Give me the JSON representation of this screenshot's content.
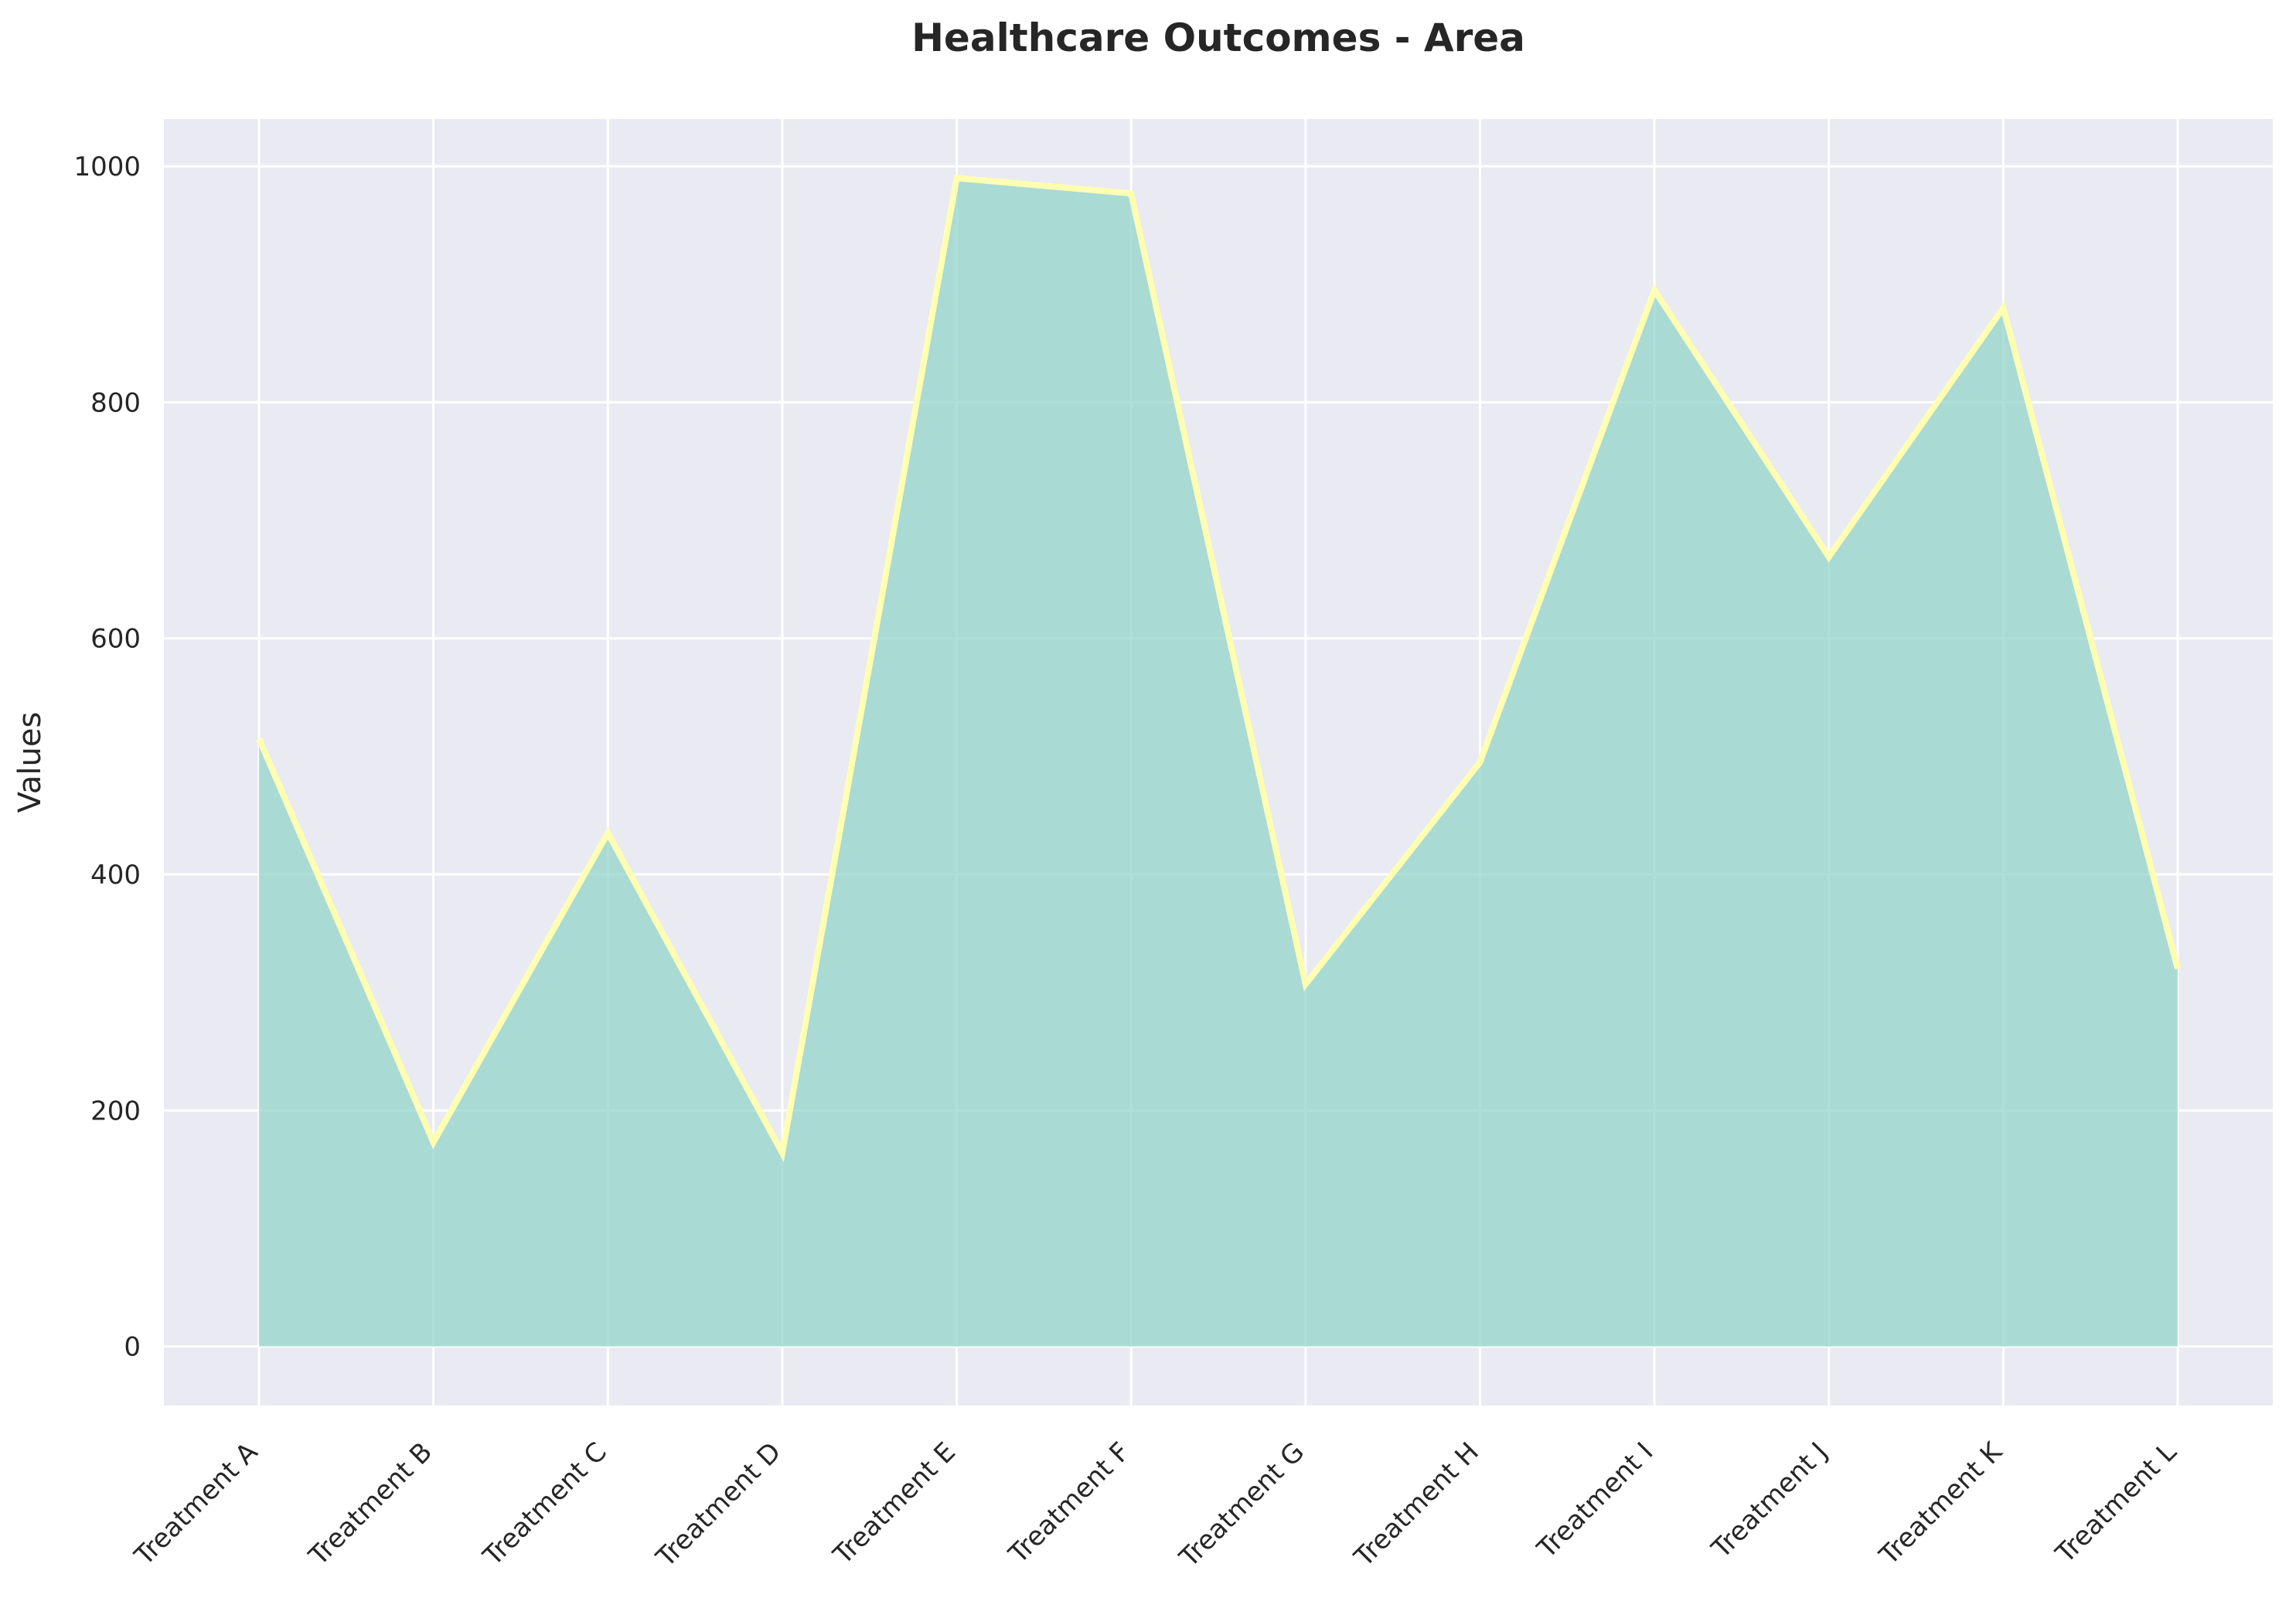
{
  "chart_data": {
    "type": "area",
    "title": "Healthcare Outcomes - Area",
    "xlabel": "",
    "ylabel": "Values",
    "categories": [
      "Treatment A",
      "Treatment B",
      "Treatment C",
      "Treatment D",
      "Treatment E",
      "Treatment F",
      "Treatment G",
      "Treatment H",
      "Treatment I",
      "Treatment J",
      "Treatment K",
      "Treatment L"
    ],
    "series": [
      {
        "values": [
          515,
          173,
          435,
          164,
          990,
          977,
          307,
          495,
          895,
          669,
          880,
          320
        ]
      }
    ],
    "ylim": [
      -50,
      1040
    ],
    "yticks": [
      0,
      200,
      400,
      600,
      800,
      1000
    ],
    "grid": true,
    "colors": {
      "background": "#eaeaf2",
      "grid": "#ffffff",
      "fill": "#8dd3c7",
      "line": "#ffffb3"
    }
  }
}
